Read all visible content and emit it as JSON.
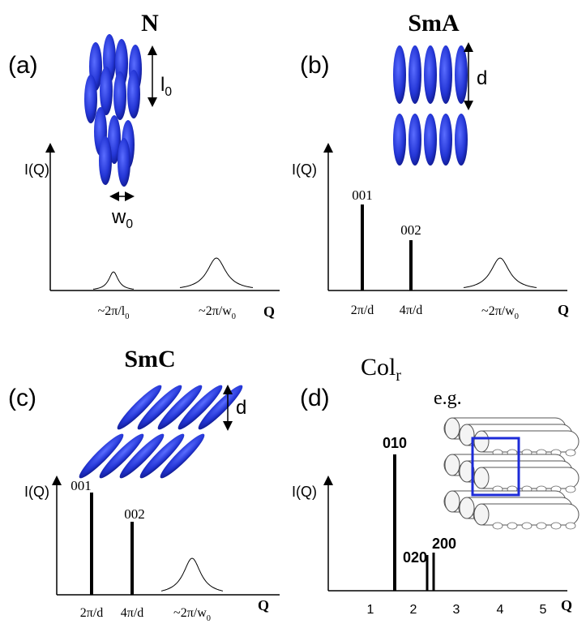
{
  "panels": [
    {
      "label": "(a)",
      "title": {
        "text": "N"
      },
      "ylabel": "I(Q)",
      "xlabel": "Q",
      "dimension_labels": [
        {
          "text": "l",
          "sub": "0"
        },
        {
          "text": "w",
          "sub": "0"
        }
      ],
      "xtick_labels": [
        {
          "text": "~2π/l",
          "sub": "0"
        },
        {
          "text": "~2π/w",
          "sub": "0"
        }
      ]
    },
    {
      "label": "(b)",
      "title": {
        "text": "SmA"
      },
      "ylabel": "I(Q)",
      "xlabel": "Q",
      "dimension_labels": [
        {
          "text": "d"
        }
      ],
      "peak_labels": [
        "001",
        "002"
      ],
      "xtick_labels": [
        {
          "text": "2π/d"
        },
        {
          "text": "4π/d"
        },
        {
          "text": "~2π/w",
          "sub": "0"
        }
      ]
    },
    {
      "label": "(c)",
      "title": {
        "text": "SmC"
      },
      "ylabel": "I(Q)",
      "xlabel": "Q",
      "dimension_labels": [
        {
          "text": "d"
        }
      ],
      "peak_labels": [
        "001",
        "002"
      ],
      "xtick_labels": [
        {
          "text": "2π/d"
        },
        {
          "text": "4π/d"
        },
        {
          "text": "~2π/w",
          "sub": "0"
        }
      ]
    },
    {
      "label": "(d)",
      "title": {
        "text": "Col",
        "sub": "r"
      },
      "note": "e.g.",
      "ylabel": "I(Q)",
      "xlabel": "Q",
      "peak_labels": [
        "010",
        "020",
        "200"
      ],
      "xtick_labels": [
        "1",
        "2",
        "3",
        "4",
        "5"
      ]
    }
  ]
}
